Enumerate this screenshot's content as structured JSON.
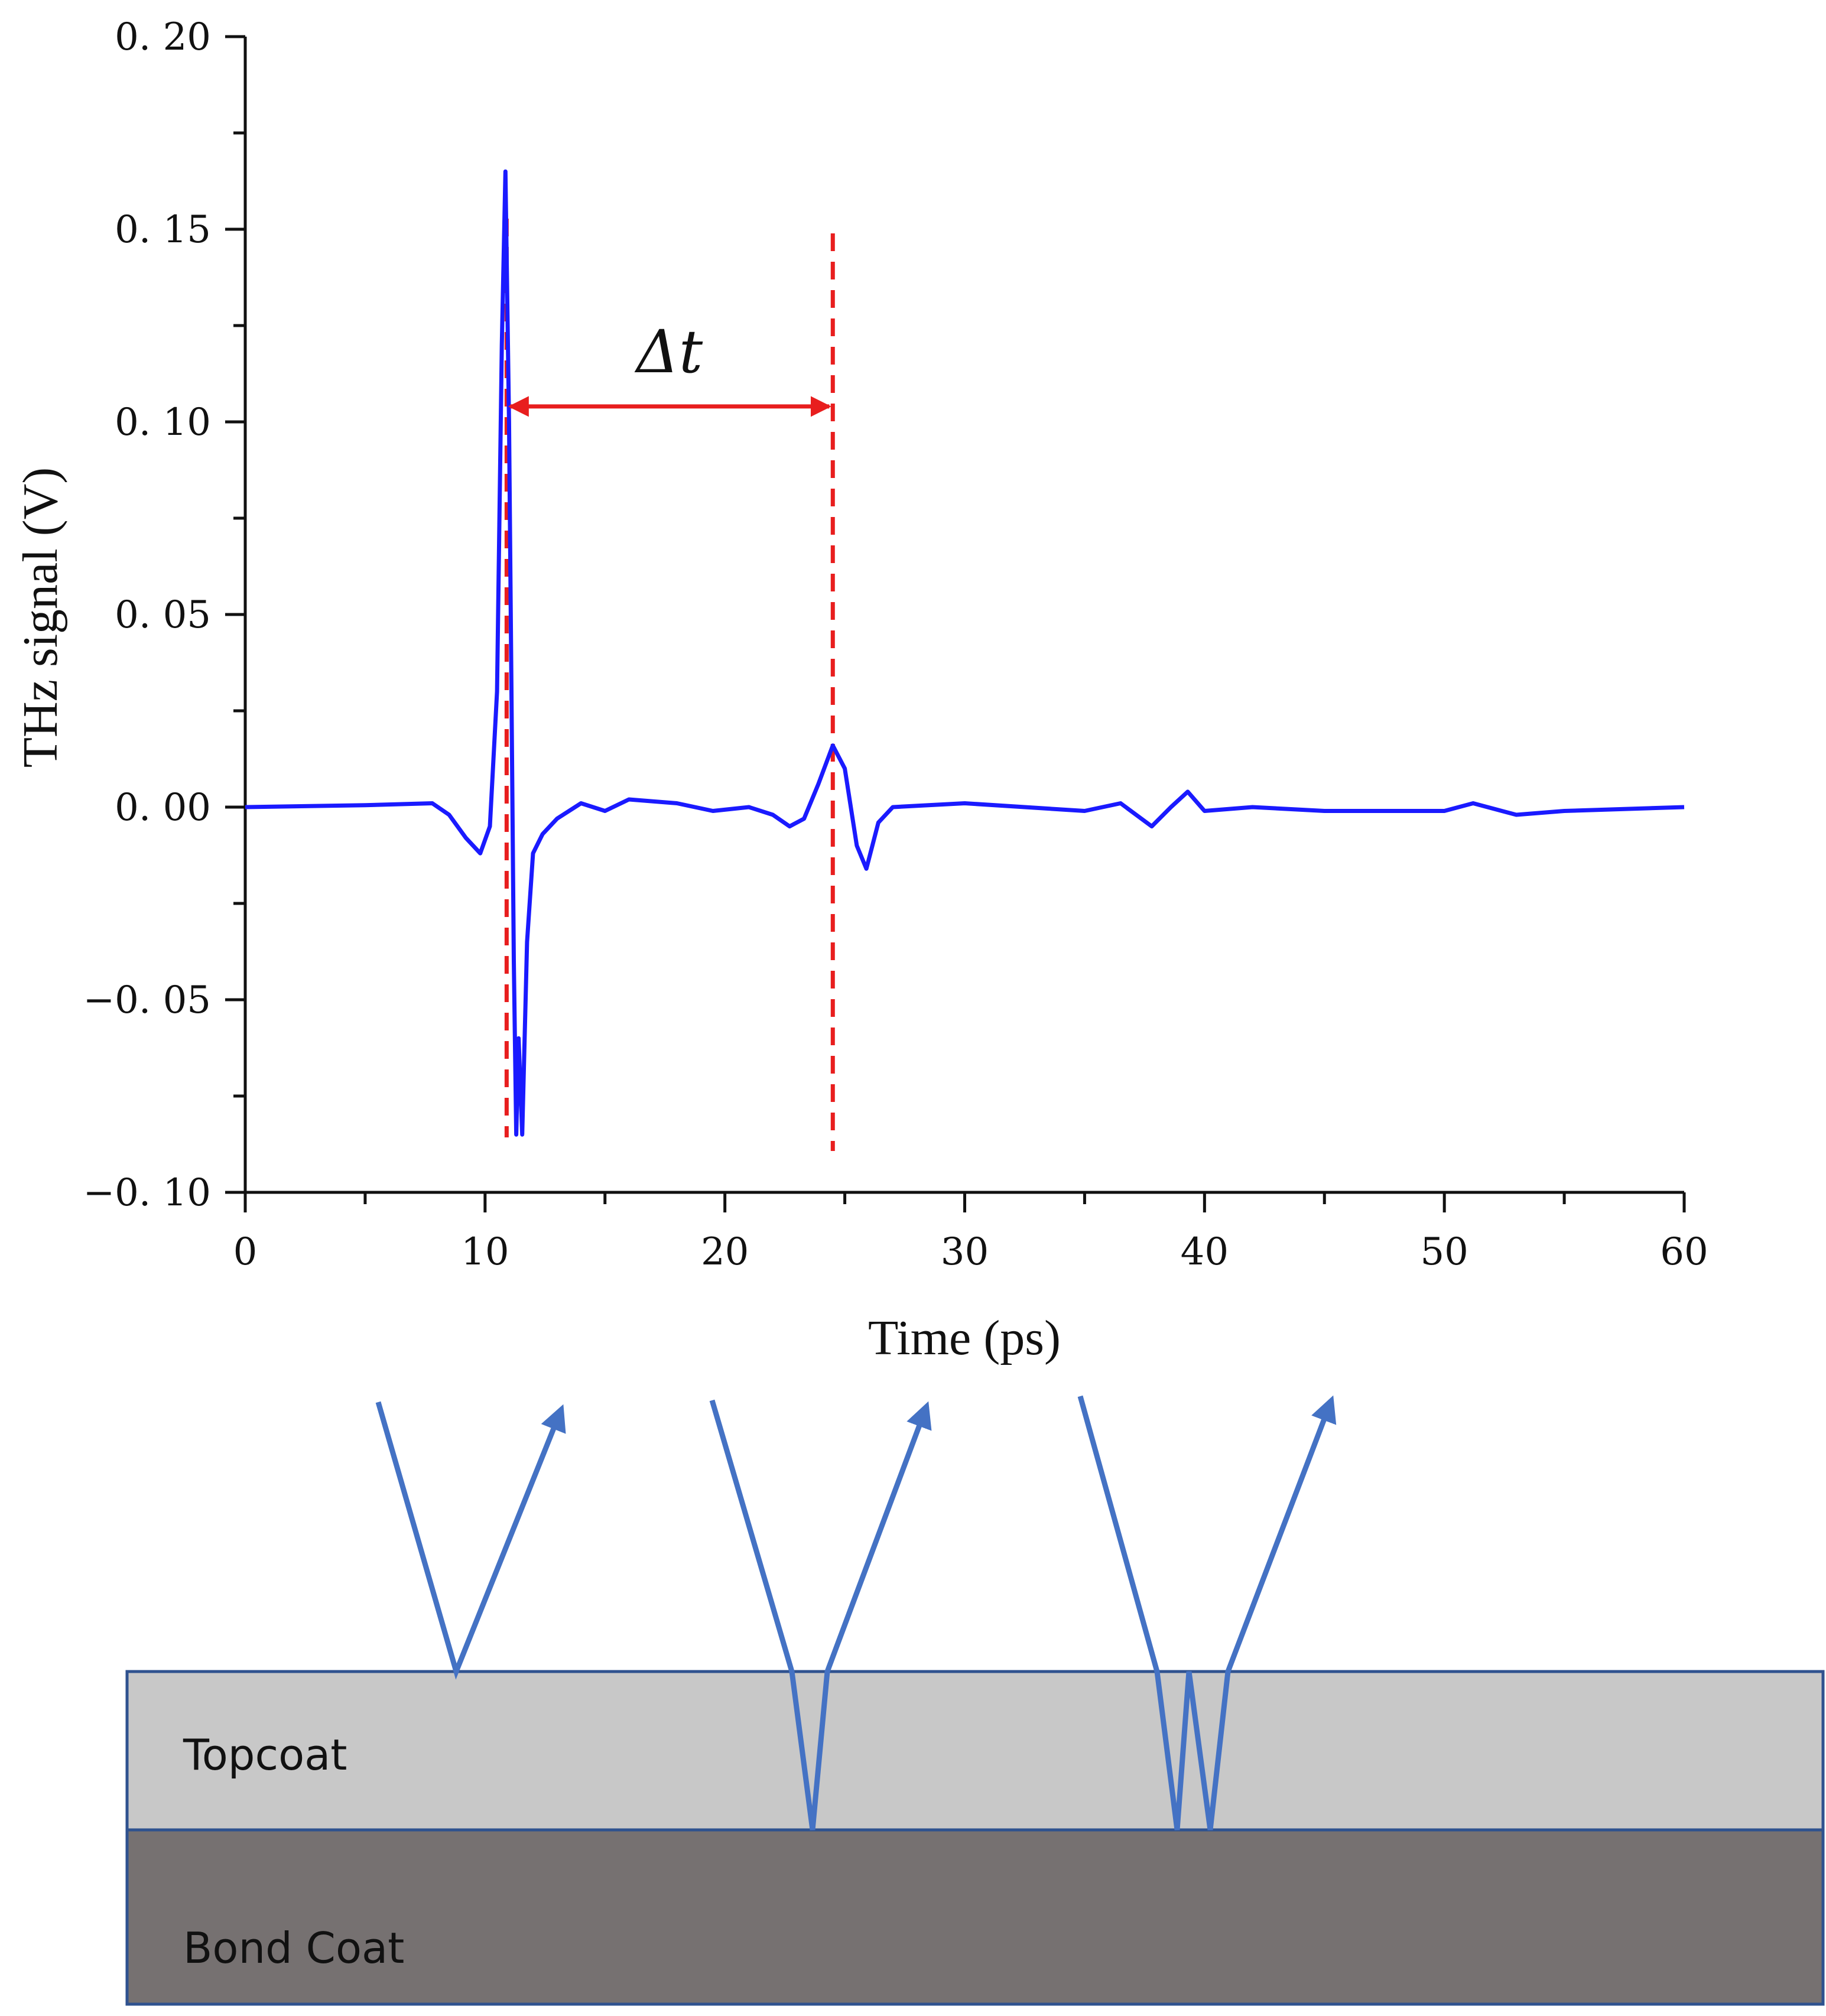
{
  "chart_data": {
    "type": "line",
    "title": "",
    "xlabel": "Time (ps)",
    "ylabel": "THz signal (V)",
    "xlim": [
      0,
      60
    ],
    "ylim": [
      -0.1,
      0.2
    ],
    "x_ticks": [
      "0",
      "10",
      "20",
      "30",
      "40",
      "50",
      "60"
    ],
    "y_ticks": [
      "−0. 10",
      "−0. 05",
      "0. 00",
      "0. 05",
      "0. 10",
      "0. 15",
      "0. 20"
    ],
    "grid": false,
    "series": [
      {
        "name": "THz signal",
        "color": "#1a1aff",
        "x": [
          0,
          5,
          7.8,
          8.5,
          9.2,
          9.8,
          10.2,
          10.5,
          10.7,
          10.85,
          11.0,
          11.1,
          11.2,
          11.3,
          11.4,
          11.55,
          11.75,
          12.0,
          12.4,
          13.0,
          14,
          15,
          16,
          18,
          19.5,
          21,
          22,
          22.7,
          23.3,
          23.9,
          24.5,
          25.0,
          25.5,
          25.9,
          26.4,
          27,
          30,
          35,
          36.5,
          37.8,
          38.6,
          39.3,
          40,
          42,
          45,
          50,
          51.2,
          53,
          55,
          60
        ],
        "values": [
          0,
          0.0005,
          0.001,
          -0.002,
          -0.008,
          -0.012,
          -0.005,
          0.03,
          0.12,
          0.165,
          0.1,
          0.03,
          -0.04,
          -0.085,
          -0.06,
          -0.085,
          -0.035,
          -0.012,
          -0.007,
          -0.003,
          0.001,
          -0.001,
          0.002,
          0.001,
          -0.001,
          0,
          -0.002,
          -0.005,
          -0.003,
          0.006,
          0.016,
          0.01,
          -0.01,
          -0.016,
          -0.004,
          0,
          0.001,
          -0.001,
          0.001,
          -0.005,
          0,
          0.004,
          -0.001,
          0,
          -0.001,
          -0.001,
          0.001,
          -0.002,
          -0.001,
          0
        ]
      }
    ],
    "markers": {
      "first_peak_x": 10.9,
      "second_peak_x": 24.5,
      "arrow_y": 0.104,
      "marker_color": "#e81e1e"
    },
    "annotation": "Δt"
  },
  "diagram": {
    "layers": [
      {
        "label": "Topcoat",
        "color": "#c8c8c8"
      },
      {
        "label": "Bond Coat",
        "color": "#767171"
      }
    ],
    "border_color": "#2f528f",
    "ray_color": "#4472c4"
  }
}
